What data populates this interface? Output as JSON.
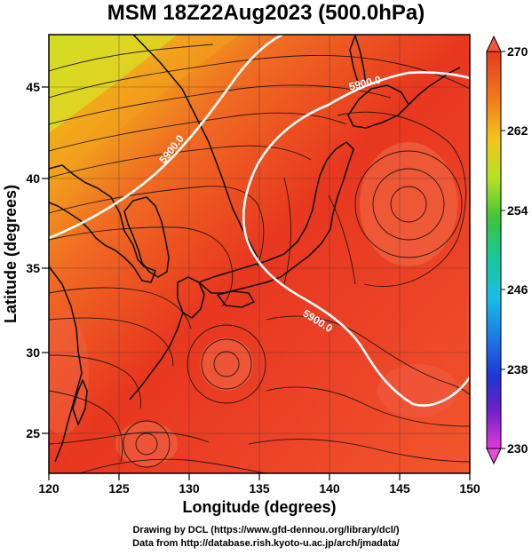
{
  "title": "MSM 18Z22Aug2023 (500.0hPa)",
  "xaxis": {
    "label": "Longitude (degrees)",
    "ticks": [
      "120",
      "125",
      "130",
      "135",
      "140",
      "145",
      "150"
    ],
    "range": [
      120,
      150
    ]
  },
  "yaxis": {
    "label": "Latitude  (degrees)",
    "ticks": [
      "25",
      "30",
      "35",
      "40",
      "45"
    ],
    "range": [
      22.4,
      47.6
    ]
  },
  "colorbar": {
    "ticks": [
      "270",
      "262",
      "254",
      "246",
      "238",
      "230"
    ],
    "range": [
      230,
      270
    ]
  },
  "contour_labels": [
    "5900.0",
    "5900.0",
    "5900.0"
  ],
  "footer": {
    "line1": "Drawing by DCL (https://www.gfd-dennou.org/library/dcl/)",
    "line2": "Data from http://database.rish.kyoto-u.ac.jp/arch/jmadata/"
  }
}
